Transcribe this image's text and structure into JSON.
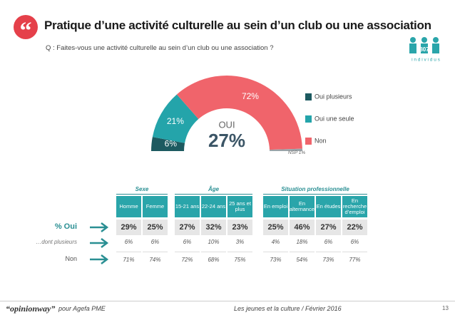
{
  "header": {
    "quote_mark": "“",
    "title": "Pratique d’une activité culturelle au sein d’un club ou une association",
    "question": "Q : Faites-vous une activité culturelle au sein d’un club ou une association ?",
    "sample_size": "807",
    "sample_unit": "i n d i v i d u s"
  },
  "chart_data": {
    "type": "pie",
    "shape": "half-donut",
    "categories": [
      "Oui plusieurs",
      "Oui une seule",
      "Non",
      null
    ],
    "values": [
      6,
      21,
      72,
      1
    ],
    "value_labels": [
      "6%",
      "21%",
      "72%",
      "NSP 1%"
    ],
    "colors": [
      "#1d5a60",
      "#24a4aa",
      "#f0646b",
      "#9aa3a8"
    ],
    "center_label": "OUI",
    "center_value": {
      "value": 27,
      "label": "27%"
    },
    "legend": "right"
  },
  "table": {
    "groups": [
      {
        "label": "Sexe",
        "columns": [
          "Homme",
          "Femme"
        ]
      },
      {
        "label": "Âge",
        "columns": [
          "15-21 ans",
          "22-24 ans",
          "25 ans et plus"
        ]
      },
      {
        "label": "Situation professionnelle",
        "columns": [
          "En emploi",
          "En alternance",
          "En études",
          "En recherche d’emploi"
        ]
      }
    ],
    "rows": [
      {
        "label": "% Oui",
        "cells": [
          "29%",
          "25%",
          "27%",
          "32%",
          "23%",
          "25%",
          "46%",
          "27%",
          "22%"
        ]
      },
      {
        "label": "…dont plusieurs",
        "cells": [
          "6%",
          "6%",
          "6%",
          "10%",
          "3%",
          "4%",
          "18%",
          "6%",
          "6%"
        ]
      },
      {
        "label": "Non",
        "cells": [
          "71%",
          "74%",
          "72%",
          "68%",
          "75%",
          "73%",
          "54%",
          "73%",
          "77%"
        ]
      }
    ]
  },
  "footer": {
    "brand": "“opinionway”",
    "client": "pour Agefa PME",
    "study": "Les jeunes et la culture / Février 2016",
    "page": "13"
  }
}
